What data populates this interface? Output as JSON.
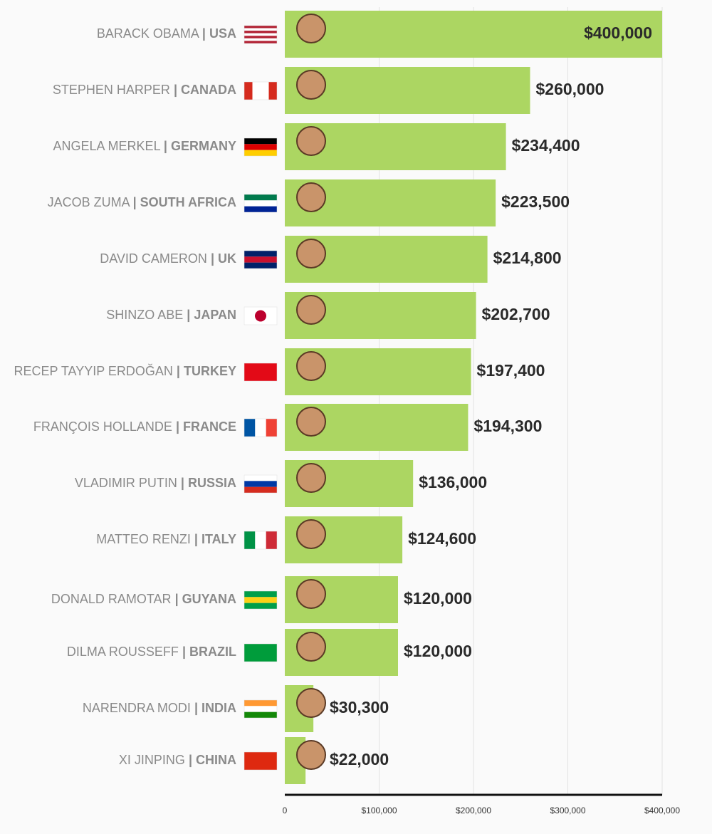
{
  "chart_data": {
    "type": "hbar",
    "categories": [
      "BARACK OBAMA",
      "STEPHEN HARPER",
      "ANGELA MERKEL",
      "JACOB ZUMA",
      "DAVID CAMERON",
      "SHINZO ABE",
      "RECEP TAYYIP ERDOĞAN",
      "FRANÇOIS HOLLANDE",
      "VLADIMIR PUTIN",
      "MATTEO RENZI",
      "DONALD RAMOTAR",
      "DILMA ROUSSEFF",
      "NARENDRA MODI",
      "XI JINPING"
    ],
    "separator": "|",
    "countries": [
      "USA",
      "CANADA",
      "GERMANY",
      "SOUTH AFRICA",
      "UK",
      "JAPAN",
      "TURKEY",
      "FRANCE",
      "RUSSIA",
      "ITALY",
      "GUYANA",
      "BRAZIL",
      "INDIA",
      "CHINA"
    ],
    "values": [
      400000,
      260000,
      234400,
      223500,
      214800,
      202700,
      197400,
      194300,
      136000,
      124600,
      120000,
      120000,
      30300,
      22000
    ],
    "value_labels": [
      "$400,000",
      "$260,000",
      "$234,400",
      "$223,500",
      "$214,800",
      "$202,700",
      "$197,400",
      "$194,300",
      "$136,000",
      "$124,600",
      "$120,000",
      "$120,000",
      "$30,300",
      "$22,000"
    ],
    "color": "#acd662",
    "xlim": [
      0,
      400000
    ],
    "xticks": [
      0,
      {
        "value": 100000,
        "label": "$100,000"
      },
      {
        "value": 200000,
        "label": "$200,000"
      },
      {
        "value": 300000,
        "label": "$300,000"
      },
      {
        "value": 400000,
        "label": "$400,000"
      }
    ],
    "grid": true
  }
}
